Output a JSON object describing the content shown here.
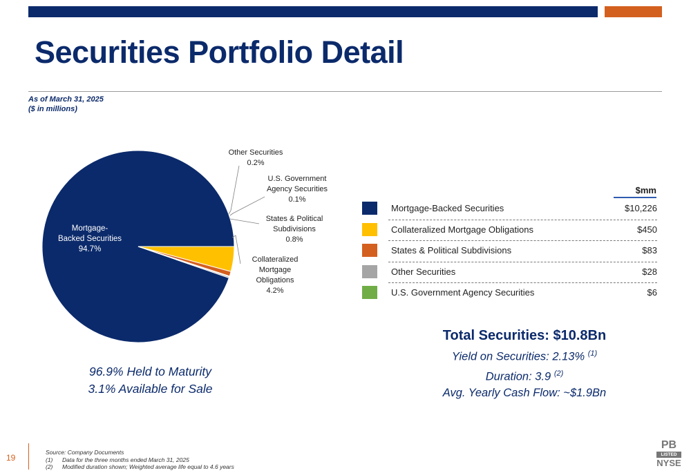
{
  "header": {
    "title": "Securities Portfolio Detail",
    "as_of": "As of March 31, 2025",
    "units": "($ in millions)"
  },
  "colors": {
    "navy": "#0b2a6b",
    "orange": "#d4601f"
  },
  "chart_data": {
    "type": "pie",
    "slices": [
      {
        "label_lines": [
          "Mortgage-",
          "Backed Securities"
        ],
        "percent_label": "94.7%",
        "value": 94.7,
        "color": "#0b2a6b"
      },
      {
        "label_lines": [
          "Collateralized",
          "Mortgage",
          "Obligations"
        ],
        "percent_label": "4.2%",
        "value": 4.2,
        "color": "#ffc000"
      },
      {
        "label_lines": [
          "States & Political",
          "Subdivisions"
        ],
        "percent_label": "0.8%",
        "value": 0.8,
        "color": "#d4601f"
      },
      {
        "label_lines": [
          "U.S. Government",
          "Agency Securities"
        ],
        "percent_label": "0.1%",
        "value": 0.1,
        "color": "#70ad47"
      },
      {
        "label_lines": [
          "Other Securities"
        ],
        "percent_label": "0.2%",
        "value": 0.2,
        "color": "#a5a5a5"
      }
    ]
  },
  "held": {
    "line1": "96.9% Held to Maturity",
    "line2": "3.1% Available for Sale"
  },
  "table": {
    "header": "$mm",
    "rows": [
      {
        "name": "Mortgage-Backed Securities",
        "value": "$10,226",
        "color": "#0b2a6b"
      },
      {
        "name": "Collateralized Mortgage Obligations",
        "value": "$450",
        "color": "#ffc000"
      },
      {
        "name": "States & Political Subdivisions",
        "value": "$83",
        "color": "#d4601f"
      },
      {
        "name": "Other Securities",
        "value": "$28",
        "color": "#a5a5a5"
      },
      {
        "name": "U.S. Government Agency Securities",
        "value": "$6",
        "color": "#70ad47"
      }
    ]
  },
  "summary": {
    "total": "Total Securities: $10.8Bn",
    "yield": "Yield on Securities: 2.13%",
    "yield_note": "(1)",
    "duration": "Duration: 3.9",
    "duration_note": "(2)",
    "cash_flow": "Avg. Yearly Cash Flow: ~$1.9Bn"
  },
  "footer": {
    "page_number": "19",
    "source": "Source: Company Documents",
    "notes": [
      {
        "num": "(1)",
        "text": "Data for the three months ended March 31, 2025"
      },
      {
        "num": "(2)",
        "text": "Modified duration shown; Weighted average life equal to 4.6 years"
      }
    ],
    "logo_top": "PB",
    "logo_listed": "LISTED",
    "logo_bottom": "NYSE"
  }
}
